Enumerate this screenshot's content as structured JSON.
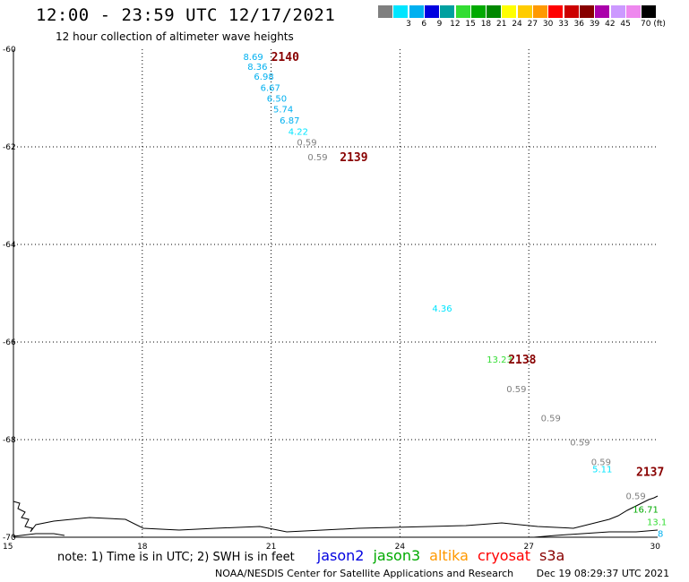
{
  "header": {
    "title": "12:00 - 23:59 UTC 12/17/2021",
    "subtitle": "12 hour collection of altimeter wave heights"
  },
  "color_scale": {
    "unit": "70 (ft)",
    "bins": [
      {
        "label": "",
        "color": "#7f7f7f"
      },
      {
        "label": "3",
        "color": "#00e5ff"
      },
      {
        "label": "6",
        "color": "#00b0f0"
      },
      {
        "label": "9",
        "color": "#0000e0"
      },
      {
        "label": "12",
        "color": "#00a0a0"
      },
      {
        "label": "15",
        "color": "#33dd33"
      },
      {
        "label": "18",
        "color": "#00aa00"
      },
      {
        "label": "21",
        "color": "#008800"
      },
      {
        "label": "24",
        "color": "#ffff00"
      },
      {
        "label": "27",
        "color": "#ffcc00"
      },
      {
        "label": "30",
        "color": "#ff9900"
      },
      {
        "label": "33",
        "color": "#ff0000"
      },
      {
        "label": "36",
        "color": "#cc0000"
      },
      {
        "label": "39",
        "color": "#880000"
      },
      {
        "label": "42",
        "color": "#aa00aa"
      },
      {
        "label": "45",
        "color": "#cc99ff"
      },
      {
        "label": "",
        "color": "#ee88ee"
      },
      {
        "label": "",
        "color": "#000000"
      }
    ]
  },
  "map": {
    "lon_range": [
      15,
      30
    ],
    "lat_range": [
      -70,
      -60
    ],
    "lon_ticks": [
      "15",
      "18",
      "21",
      "24",
      "27",
      "30"
    ],
    "lat_ticks": [
      "-60",
      "-62",
      "-64",
      "-66",
      "-68",
      "-70"
    ],
    "grid": "dotted"
  },
  "swh_labels": [
    {
      "text": "8.69",
      "lon": 20.35,
      "lat": -60.15,
      "color": "#00b0f0"
    },
    {
      "text": "8.36",
      "lon": 20.45,
      "lat": -60.35,
      "color": "#00b0f0"
    },
    {
      "text": "6.98",
      "lon": 20.6,
      "lat": -60.55,
      "color": "#00b0f0"
    },
    {
      "text": "6.67",
      "lon": 20.75,
      "lat": -60.78,
      "color": "#00b0f0"
    },
    {
      "text": "6.50",
      "lon": 20.9,
      "lat": -61.0,
      "color": "#00b0f0"
    },
    {
      "text": "5.74",
      "lon": 21.05,
      "lat": -61.22,
      "color": "#00b0f0"
    },
    {
      "text": "6.87",
      "lon": 21.2,
      "lat": -61.45,
      "color": "#00b0f0"
    },
    {
      "text": "4.22",
      "lon": 21.4,
      "lat": -61.68,
      "color": "#00e5ff"
    },
    {
      "text": "0.59",
      "lon": 21.6,
      "lat": -61.9,
      "color": "#7f7f7f"
    },
    {
      "text": "0.59",
      "lon": 21.85,
      "lat": -62.2,
      "color": "#7f7f7f"
    },
    {
      "text": "4.36",
      "lon": 24.75,
      "lat": -65.3,
      "color": "#00e5ff"
    },
    {
      "text": "13.23",
      "lon": 26.02,
      "lat": -66.35,
      "color": "#33dd33"
    },
    {
      "text": "0.59",
      "lon": 26.48,
      "lat": -66.95,
      "color": "#7f7f7f"
    },
    {
      "text": "0.59",
      "lon": 27.28,
      "lat": -67.55,
      "color": "#7f7f7f"
    },
    {
      "text": "0.59",
      "lon": 27.96,
      "lat": -68.05,
      "color": "#7f7f7f"
    },
    {
      "text": "0.59",
      "lon": 28.45,
      "lat": -68.45,
      "color": "#7f7f7f"
    },
    {
      "text": "5.11",
      "lon": 28.48,
      "lat": -68.6,
      "color": "#00e5ff"
    },
    {
      "text": "0.59",
      "lon": 29.26,
      "lat": -69.15,
      "color": "#7f7f7f"
    },
    {
      "text": "16.71",
      "lon": 29.42,
      "lat": -69.42,
      "color": "#00aa00"
    },
    {
      "text": "13.1",
      "lon": 29.75,
      "lat": -69.68,
      "color": "#33dd33"
    },
    {
      "text": "8",
      "lon": 30.0,
      "lat": -69.92,
      "color": "#00b0f0"
    }
  ],
  "pass_labels": [
    {
      "text": "2140",
      "lon": 21.0,
      "lat": -60.15
    },
    {
      "text": "2139",
      "lon": 22.6,
      "lat": -62.2
    },
    {
      "text": "2138",
      "lon": 26.52,
      "lat": -66.35
    },
    {
      "text": "2137",
      "lon": 29.5,
      "lat": -68.65
    }
  ],
  "pass_label_color": "#880000",
  "footer": {
    "note": "note: 1) Time is in UTC; 2) SWH is in feet",
    "satellites": [
      {
        "name": "jason2",
        "color": "#0000e0"
      },
      {
        "name": "jason3",
        "color": "#00aa00"
      },
      {
        "name": "altika",
        "color": "#ff9900"
      },
      {
        "name": "cryosat",
        "color": "#ff0000"
      },
      {
        "name": "s3a",
        "color": "#880000"
      }
    ],
    "credit": "NOAA/NESDIS Center for Satellite Applications and Research",
    "timestamp": "Dec 19 08:29:37 UTC 2021"
  }
}
